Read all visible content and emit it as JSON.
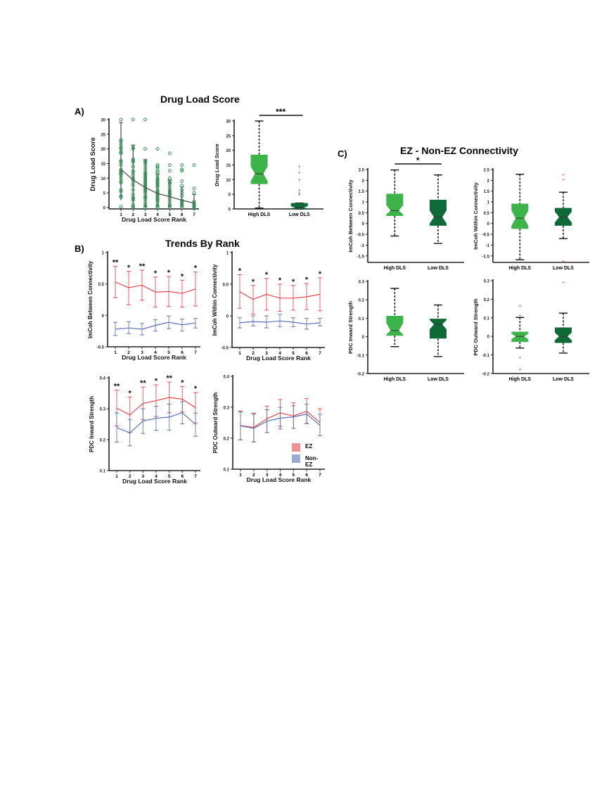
{
  "titles": {
    "a": "Drug Load Score",
    "b": "Trends By Rank",
    "c": "EZ - Non-EZ Connectivity"
  },
  "panel_labels": {
    "a": "A)",
    "b": "B)",
    "c": "C)"
  },
  "colors": {
    "high_dls": "#3cb44a",
    "low_dls": "#0e6b37",
    "ez": "#e8474c",
    "non_ez": "#5b73b8",
    "scatter": "#2e9150",
    "outlier": "#e0304a"
  },
  "legend": {
    "items": [
      {
        "label": "EZ",
        "color": "#f29191"
      },
      {
        "label": "Non-EZ",
        "color": "#9aaad6"
      }
    ]
  },
  "chart_data": [
    {
      "id": "a-scatter",
      "type": "scatter",
      "title": "",
      "xlabel": "Drug Load Score Rank",
      "ylabel": "Drug Load Score",
      "xticks": [
        1,
        2,
        3,
        4,
        5,
        6,
        7
      ],
      "yticks": [
        0,
        5,
        10,
        15,
        20,
        25,
        30
      ],
      "ylim": [
        0,
        30
      ],
      "points": {
        "1": [
          0.3,
          3.5,
          4,
          5.5,
          6,
          8.5,
          9,
          10,
          11,
          11.5,
          12,
          12.5,
          13,
          14.5,
          15.5,
          16,
          18.5,
          19,
          20,
          20.5,
          21.5,
          22.5,
          23,
          30
        ],
        "2": [
          0,
          0.3,
          1,
          2.5,
          3,
          3.5,
          4.5,
          6,
          7.5,
          8.5,
          9.5,
          10,
          11,
          12,
          12.5,
          14,
          15.5,
          16,
          16.5,
          20,
          20.5,
          30
        ],
        "3": [
          0,
          0.5,
          1,
          2,
          3,
          3.5,
          4,
          5,
          5.5,
          6,
          6.5,
          7,
          7.5,
          8,
          8.5,
          9,
          9.5,
          10,
          10.5,
          11,
          11.5,
          12,
          13,
          14,
          15,
          15.5,
          16,
          20,
          30
        ],
        "4": [
          0,
          0.5,
          1,
          2,
          2.5,
          3,
          3.5,
          4,
          4.5,
          5,
          5.5,
          6,
          7,
          7.5,
          8,
          8.5,
          9,
          9.5,
          10,
          11,
          12,
          12.5,
          13.5,
          14,
          14.5,
          20
        ],
        "5": [
          0,
          0.5,
          1,
          2,
          3,
          4,
          4.5,
          5,
          5.5,
          6,
          7,
          8,
          8.5,
          9,
          10,
          12.5,
          14.5,
          18.5
        ],
        "6": [
          0,
          0.5,
          1,
          1.5,
          2,
          2.5,
          4,
          5,
          6,
          7.5,
          9,
          12.5,
          13,
          14.5
        ],
        "7": [
          0,
          0.3,
          0.5,
          1,
          1.5,
          2,
          5,
          6.5,
          14.5
        ]
      },
      "mean": [
        13,
        9.4,
        6.8,
        4.8,
        3.7,
        2.5,
        1.5
      ],
      "sd_upper": [
        29,
        21.3,
        16.3,
        11.5,
        9.5,
        7,
        4.5
      ],
      "sd_lower": [
        2.5,
        0,
        0,
        0,
        0,
        0,
        0
      ]
    },
    {
      "id": "a-box",
      "type": "box",
      "xlabel": "",
      "ylabel": "Drug Load Score",
      "categories": [
        "High DLS",
        "Low DLS"
      ],
      "yticks": [
        0,
        5,
        10,
        15,
        20,
        25,
        30
      ],
      "ylim": [
        0,
        30
      ],
      "boxes": [
        {
          "q1": 8.5,
          "median": 12,
          "q3": 18.5,
          "notch_lo": 9.5,
          "notch_hi": 14.5,
          "whisker_lo": 0.3,
          "whisker_hi": 30,
          "outliers": []
        },
        {
          "q1": 0,
          "median": 0.5,
          "q3": 2,
          "notch_lo": 0.2,
          "notch_hi": 0.9,
          "whisker_lo": 0,
          "whisker_hi": 2,
          "outliers": [
            5,
            5.5,
            6.5,
            10,
            12.5,
            14.5
          ]
        }
      ],
      "significance": {
        "label": "***",
        "between": [
          0,
          1
        ]
      }
    },
    {
      "id": "b-imcoh-between",
      "type": "line",
      "xlabel": "Drug Load Score Rank",
      "ylabel": "ImCoh Between Connectivity",
      "x": [
        1,
        2,
        3,
        4,
        5,
        6,
        7
      ],
      "yticks": [
        -0.5,
        0,
        0.5,
        1
      ],
      "ytick_labels": [
        "-0.5",
        "0",
        "0.5",
        "1"
      ],
      "ylim": [
        -0.5,
        1
      ],
      "series": [
        {
          "name": "EZ",
          "values": [
            0.53,
            0.44,
            0.48,
            0.37,
            0.38,
            0.35,
            0.42
          ],
          "err_hi": [
            0.78,
            0.7,
            0.72,
            0.61,
            0.62,
            0.56,
            0.69
          ],
          "err_lo": [
            0.28,
            0.17,
            0.24,
            0.13,
            0.14,
            0.13,
            0.15
          ]
        },
        {
          "name": "Non-EZ",
          "values": [
            -0.22,
            -0.2,
            -0.22,
            -0.16,
            -0.11,
            -0.15,
            -0.12
          ],
          "err_hi": [
            -0.11,
            -0.1,
            -0.13,
            -0.07,
            -0.01,
            -0.06,
            -0.05
          ],
          "err_lo": [
            -0.32,
            -0.29,
            -0.31,
            -0.25,
            -0.21,
            -0.25,
            -0.2
          ]
        }
      ],
      "significance": [
        "**",
        "*",
        "**",
        "*",
        "*",
        "*",
        "*"
      ]
    },
    {
      "id": "b-imcoh-within",
      "type": "line",
      "xlabel": "Drug Load Score Rank",
      "ylabel": "ImCoh Within Connectivity",
      "x": [
        1,
        2,
        3,
        4,
        5,
        6,
        7
      ],
      "yticks": [
        -0.5,
        0,
        0.5,
        1
      ],
      "ytick_labels": [
        "-0.5",
        "0",
        "0.5",
        "1"
      ],
      "ylim": [
        -0.5,
        1
      ],
      "series": [
        {
          "name": "EZ",
          "values": [
            0.38,
            0.26,
            0.34,
            0.28,
            0.28,
            0.3,
            0.34
          ],
          "err_hi": [
            0.65,
            0.48,
            0.59,
            0.5,
            0.48,
            0.51,
            0.6
          ],
          "err_lo": [
            0.12,
            0.03,
            0.09,
            0.07,
            0.09,
            0.1,
            0.08
          ]
        },
        {
          "name": "Non-EZ",
          "values": [
            -0.11,
            -0.09,
            -0.1,
            -0.08,
            -0.1,
            -0.13,
            -0.11
          ],
          "err_hi": [
            -0.03,
            0.0,
            0.0,
            0.02,
            -0.03,
            -0.04,
            -0.04
          ],
          "err_lo": [
            -0.19,
            -0.16,
            -0.19,
            -0.17,
            -0.17,
            -0.21,
            -0.16
          ]
        }
      ],
      "significance": [
        "*",
        "*",
        "*",
        "*",
        "*",
        "*",
        "*"
      ]
    },
    {
      "id": "b-pdc-inward",
      "type": "line",
      "xlabel": "Drug Load Score Rank",
      "ylabel": "PDC Inward Strength",
      "x": [
        1,
        2,
        3,
        4,
        5,
        6,
        7
      ],
      "yticks": [
        0.1,
        0.2,
        0.3,
        0.4
      ],
      "ytick_labels": [
        "0.1",
        "0.2",
        "0.3",
        "0.4"
      ],
      "ylim": [
        0.1,
        0.4
      ],
      "series": [
        {
          "name": "EZ",
          "values": [
            0.302,
            0.28,
            0.317,
            0.326,
            0.336,
            0.331,
            0.303
          ],
          "err_hi": [
            0.36,
            0.338,
            0.37,
            0.377,
            0.386,
            0.372,
            0.352
          ],
          "err_lo": [
            0.244,
            0.222,
            0.265,
            0.275,
            0.287,
            0.29,
            0.254
          ]
        },
        {
          "name": "Non-EZ",
          "values": [
            0.239,
            0.222,
            0.26,
            0.269,
            0.273,
            0.287,
            0.249
          ],
          "err_hi": [
            0.286,
            0.265,
            0.3,
            0.308,
            0.315,
            0.323,
            0.286
          ],
          "err_lo": [
            0.192,
            0.18,
            0.22,
            0.23,
            0.23,
            0.251,
            0.211
          ]
        }
      ],
      "significance": [
        "**",
        "*",
        "**",
        "*",
        "**",
        "*",
        "*"
      ]
    },
    {
      "id": "b-pdc-outward",
      "type": "line",
      "xlabel": "Drug Load Score Rank",
      "ylabel": "PDC Outward Strength",
      "x": [
        1,
        2,
        3,
        4,
        5,
        6,
        7
      ],
      "yticks": [
        0.1,
        0.2,
        0.3,
        0.4
      ],
      "ytick_labels": [
        "0.1",
        "0.2",
        "0.3",
        "0.4"
      ],
      "ylim": [
        0.1,
        0.4
      ],
      "series": [
        {
          "name": "EZ",
          "values": [
            0.241,
            0.235,
            0.263,
            0.282,
            0.272,
            0.287,
            0.251
          ],
          "err_hi": [
            0.288,
            0.281,
            0.304,
            0.325,
            0.314,
            0.328,
            0.295
          ],
          "err_lo": [
            0.195,
            0.188,
            0.218,
            0.238,
            0.232,
            0.247,
            0.208
          ]
        },
        {
          "name": "Non-EZ",
          "values": [
            0.24,
            0.232,
            0.255,
            0.265,
            0.269,
            0.278,
            0.242
          ],
          "err_hi": [
            0.285,
            0.278,
            0.292,
            0.3,
            0.305,
            0.31,
            0.277
          ],
          "err_lo": [
            0.195,
            0.188,
            0.218,
            0.23,
            0.232,
            0.248,
            0.208
          ]
        }
      ],
      "significance": []
    },
    {
      "id": "c-imcoh-between",
      "type": "box",
      "ylabel": "ImCoh Between Connectivity",
      "categories": [
        "High DLS",
        "Low DLS"
      ],
      "yticks": [
        -1.5,
        -1,
        -0.5,
        0,
        0.5,
        1,
        1.5,
        2,
        2.5
      ],
      "ytick_labels": [
        "-1.5",
        "-1",
        "-0.5",
        "0",
        "0.5",
        "1",
        "1.5",
        "2",
        "2.5"
      ],
      "ylim": [
        -1.8,
        2.5
      ],
      "boxes": [
        {
          "q1": 0.35,
          "median": 0.6,
          "q3": 1.38,
          "notch_lo": 0.42,
          "notch_hi": 0.85,
          "whisker_lo": -0.58,
          "whisker_hi": 2.48,
          "outliers": []
        },
        {
          "q1": -0.1,
          "median": 0.3,
          "q3": 1.1,
          "notch_lo": 0.0,
          "notch_hi": 0.6,
          "whisker_lo": -0.92,
          "whisker_hi": 2.25,
          "outliers": []
        }
      ],
      "significance": {
        "label": "*",
        "between": [
          0,
          1
        ]
      }
    },
    {
      "id": "c-imcoh-within",
      "type": "box",
      "ylabel": "ImCoh Within Connectivity",
      "categories": [
        "High DLS",
        "Low DLS"
      ],
      "yticks": [
        -1.5,
        -1,
        -0.5,
        0,
        0.5,
        1,
        1.5,
        2,
        2.5
      ],
      "ytick_labels": [
        "-1.5",
        "-1",
        "-0.5",
        "0",
        "0.5",
        "1",
        "1.5",
        "2",
        "2.5"
      ],
      "ylim": [
        -1.8,
        2.5
      ],
      "boxes": [
        {
          "q1": -0.25,
          "median": 0.25,
          "q3": 0.92,
          "notch_lo": -0.1,
          "notch_hi": 0.6,
          "whisker_lo": -1.68,
          "whisker_hi": 2.28,
          "outliers": []
        },
        {
          "q1": -0.1,
          "median": 0.3,
          "q3": 0.72,
          "notch_lo": 0.05,
          "notch_hi": 0.55,
          "whisker_lo": -0.7,
          "whisker_hi": 1.45,
          "outliers": [
            2.05,
            2.28,
            -1.75
          ]
        }
      ],
      "significance": null
    },
    {
      "id": "c-pdc-inward",
      "type": "box",
      "ylabel": "PDC Inward Strength",
      "categories": [
        "High DLS",
        "Low DLS"
      ],
      "yticks": [
        -0.2,
        -0.1,
        0,
        0.1,
        0.2,
        0.3
      ],
      "ytick_labels": [
        "-0.2",
        "-0.1",
        "0",
        "0.1",
        "0.2",
        "0.3"
      ],
      "ylim": [
        -0.2,
        0.3
      ],
      "boxes": [
        {
          "q1": 0.005,
          "median": 0.033,
          "q3": 0.113,
          "notch_lo": 0.012,
          "notch_hi": 0.075,
          "whisker_lo": -0.054,
          "whisker_hi": 0.262,
          "outliers": []
        },
        {
          "q1": -0.01,
          "median": 0.067,
          "q3": 0.097,
          "notch_lo": 0.04,
          "notch_hi": 0.09,
          "whisker_lo": -0.108,
          "whisker_hi": 0.172,
          "outliers": []
        }
      ],
      "significance": null
    },
    {
      "id": "c-pdc-outward",
      "type": "box",
      "ylabel": "PDC Outward Strength",
      "categories": [
        "High DLS",
        "Low DLS"
      ],
      "yticks": [
        -0.2,
        -0.1,
        0,
        0.1,
        0.2,
        0.3
      ],
      "ytick_labels": [
        "-0.2",
        "-0.1",
        "0",
        "0.1",
        "0.2",
        "0.3"
      ],
      "ylim": [
        -0.2,
        0.3
      ],
      "boxes": [
        {
          "q1": -0.03,
          "median": 0.0,
          "q3": 0.025,
          "notch_lo": -0.015,
          "notch_hi": 0.015,
          "whisker_lo": -0.063,
          "whisker_hi": 0.102,
          "outliers": [
            0.165,
            0.112,
            -0.112,
            -0.178
          ]
        },
        {
          "q1": -0.035,
          "median": 0.0,
          "q3": 0.048,
          "notch_lo": -0.02,
          "notch_hi": 0.02,
          "whisker_lo": -0.09,
          "whisker_hi": 0.125,
          "outliers": [
            0.29
          ]
        }
      ],
      "significance": null
    }
  ]
}
